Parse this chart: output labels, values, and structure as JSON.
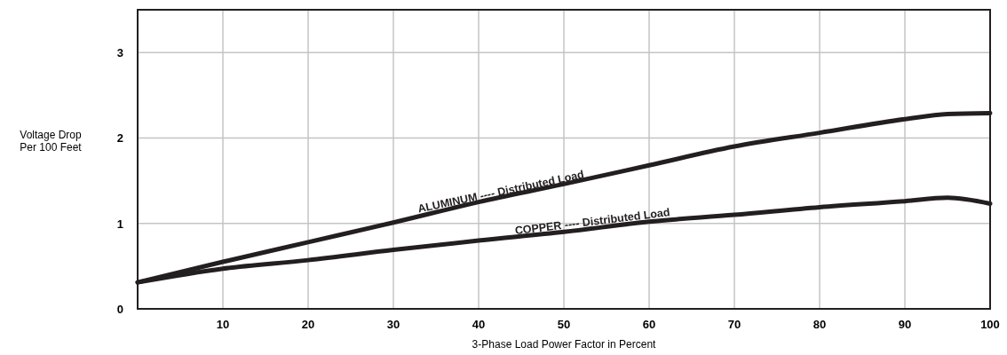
{
  "chart_data": {
    "type": "line",
    "xlabel": "3-Phase Load Power Factor in Percent",
    "ylabel": "Voltage Drop\nPer 100 Feet",
    "x": [
      0,
      10,
      20,
      30,
      40,
      50,
      60,
      70,
      80,
      90,
      95,
      100
    ],
    "series": [
      {
        "color": "#231f20",
        "values": [
          0.31,
          0.55,
          0.78,
          1.01,
          1.25,
          1.46,
          1.68,
          1.9,
          2.06,
          2.22,
          2.28,
          2.29
        ]
      },
      {
        "color": "#231f20",
        "values": [
          0.31,
          0.47,
          0.57,
          0.69,
          0.8,
          0.9,
          1.02,
          1.1,
          1.19,
          1.26,
          1.3,
          1.23
        ]
      }
    ],
    "annotations": [
      {
        "text": "ALUMINUM ---- Distributed Load",
        "x": 42.7,
        "y": 1.33
      },
      {
        "text": "COPPER ---- Distributed Load",
        "x": 53.4,
        "y": 0.98
      }
    ],
    "xlim": [
      0,
      100
    ],
    "ylim": [
      0,
      3.5
    ],
    "xticks": [
      {
        "value": 0,
        "label": null
      },
      10,
      20,
      30,
      40,
      50,
      60,
      70,
      80,
      90,
      100
    ],
    "yticks": [
      0,
      1,
      2,
      3
    ],
    "grid": true,
    "marker": "none",
    "line_style": "solid"
  }
}
